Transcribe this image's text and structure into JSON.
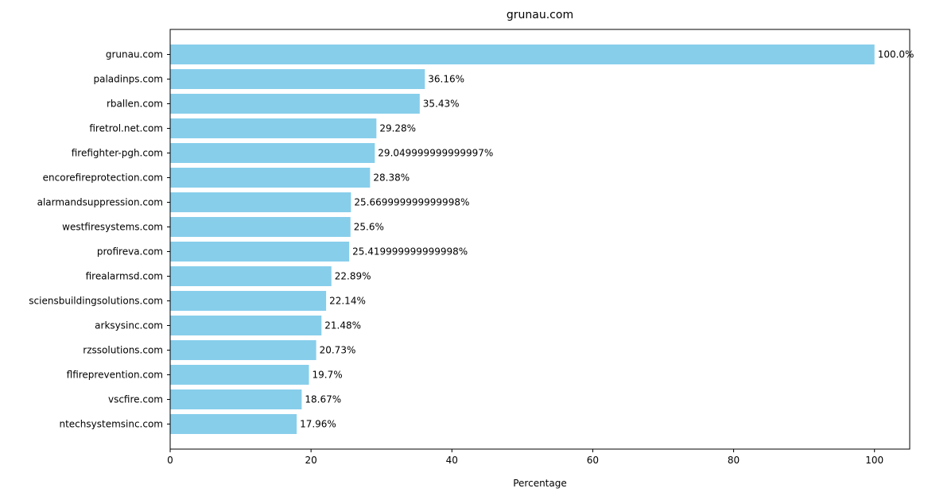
{
  "chart_data": {
    "type": "bar",
    "orientation": "horizontal",
    "title": "grunau.com",
    "xlabel": "Percentage",
    "ylabel": "",
    "xlim": [
      0,
      105
    ],
    "xticks": [
      0,
      20,
      40,
      60,
      80,
      100
    ],
    "grid": false,
    "bar_color": "#87CEEB",
    "categories": [
      "grunau.com",
      "paladinps.com",
      "rballen.com",
      "firetrol.net.com",
      "firefighter-pgh.com",
      "encorefireprotection.com",
      "alarmandsuppression.com",
      "westfiresystems.com",
      "profireva.com",
      "firealarmsd.com",
      "sciensbuildingsolutions.com",
      "arksysinc.com",
      "rzssolutions.com",
      "flfireprevention.com",
      "vscfire.com",
      "ntechsystemsinc.com"
    ],
    "values": [
      100.0,
      36.16,
      35.43,
      29.28,
      29.05,
      28.38,
      25.67,
      25.6,
      25.42,
      22.89,
      22.14,
      21.48,
      20.73,
      19.7,
      18.67,
      17.96
    ],
    "data_labels": [
      "100.0%",
      "36.16%",
      "35.43%",
      "29.28%",
      "29.049999999999997%",
      "28.38%",
      "25.669999999999998%",
      "25.6%",
      "25.419999999999998%",
      "22.89%",
      "22.14%",
      "21.48%",
      "20.73%",
      "19.7%",
      "18.67%",
      "17.96%"
    ]
  }
}
